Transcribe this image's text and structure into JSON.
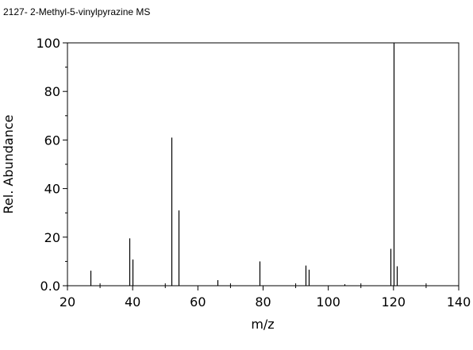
{
  "chart_data": {
    "type": "bar",
    "title": "2127- 2-Methyl-5-vinylpyrazine MS",
    "xlabel": "m/z",
    "ylabel": "Rel. Abundance",
    "xlim": [
      20,
      140
    ],
    "ylim": [
      0,
      100
    ],
    "x_ticks": [
      20,
      40,
      60,
      80,
      100,
      120,
      140
    ],
    "x_tick_labels": [
      "20",
      "40",
      "60",
      "80",
      "100",
      "120",
      "140"
    ],
    "y_ticks": [
      0,
      20,
      40,
      60,
      80,
      100
    ],
    "y_tick_labels": [
      "0.0",
      "20",
      "40",
      "60",
      "80",
      "100"
    ],
    "grid": false,
    "legend": "none",
    "bar_color": "#000000",
    "series": [
      {
        "x": [
          27,
          39,
          40,
          52,
          54,
          66,
          79,
          93,
          94,
          105,
          119,
          120,
          121
        ],
        "values": [
          6.2,
          19.5,
          10.8,
          61,
          31,
          2.3,
          10,
          8.3,
          6.6,
          0.6,
          15.2,
          100,
          8.0
        ]
      }
    ]
  }
}
